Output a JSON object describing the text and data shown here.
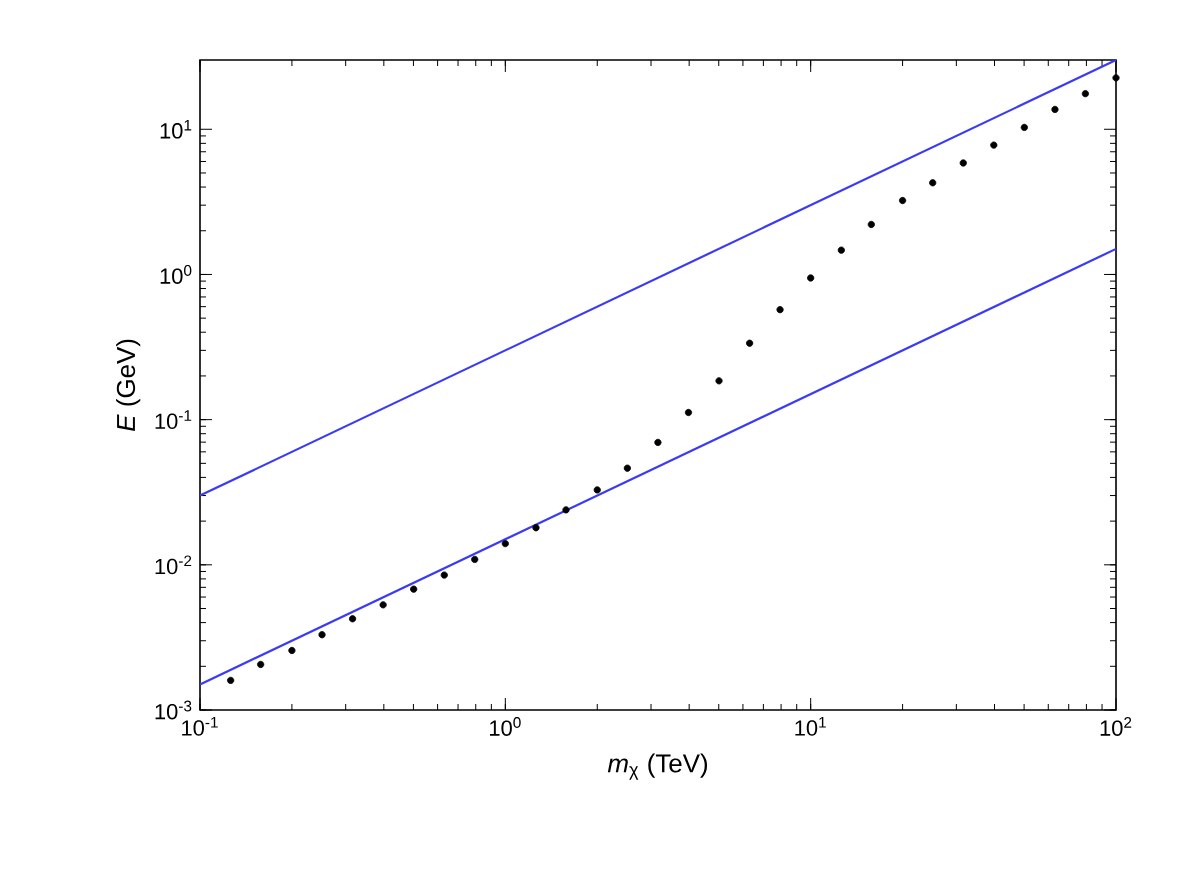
{
  "chart_data": {
    "type": "scatter",
    "xlabel": "*m*$_{χ}$ (TeV)",
    "ylabel": "*E* (GeV)",
    "log": "xy",
    "grid": false,
    "marker": "circle",
    "xlim": [
      0.1,
      100
    ],
    "ylim": [
      0.001,
      30
    ],
    "xticks": [
      {
        "value": 0.1,
        "label": "10$^{-1}$"
      },
      {
        "value": 1,
        "label": "10$^{0}$"
      },
      {
        "value": 10,
        "label": "10$^{1}$"
      },
      {
        "value": 100,
        "label": "10$^{2}$"
      }
    ],
    "yticks": [
      {
        "value": 0.001,
        "label": "10$^{-3}$"
      },
      {
        "value": 0.01,
        "label": "10$^{-2}$"
      },
      {
        "value": 0.1,
        "label": "10$^{-1}$"
      },
      {
        "value": 1,
        "label": "10$^{0}$"
      },
      {
        "value": 10,
        "label": "10$^{1}$"
      }
    ],
    "series": [
      {
        "type": "line",
        "color": "#3b3bf5",
        "marker": "none",
        "line_style": "solid",
        "x": [
          0.1,
          100
        ],
        "values": [
          0.03,
          30
        ]
      },
      {
        "type": "line",
        "color": "#3b3bf5",
        "marker": "none",
        "line_style": "solid",
        "x": [
          0.1,
          100
        ],
        "values": [
          0.0015,
          1.5
        ]
      },
      {
        "color": "#000000",
        "x": [
          0.126,
          0.158,
          0.2,
          0.251,
          0.316,
          0.398,
          0.501,
          0.631,
          0.794,
          1.0,
          1.26,
          1.58,
          2.0,
          2.51,
          3.16,
          3.98,
          5.01,
          6.31,
          7.94,
          10.0,
          12.6,
          15.8,
          20.0,
          25.1,
          31.6,
          39.8,
          50.1,
          63.1,
          79.4,
          100.0
        ],
        "values": [
          0.0016,
          0.00206,
          0.00257,
          0.0033,
          0.00425,
          0.0053,
          0.0068,
          0.0085,
          0.0109,
          0.014,
          0.018,
          0.0239,
          0.0328,
          0.0463,
          0.0697,
          0.112,
          0.185,
          0.336,
          0.572,
          0.946,
          1.47,
          2.21,
          3.23,
          4.28,
          5.86,
          7.78,
          10.3,
          13.7,
          17.6,
          22.6
        ]
      }
    ]
  }
}
